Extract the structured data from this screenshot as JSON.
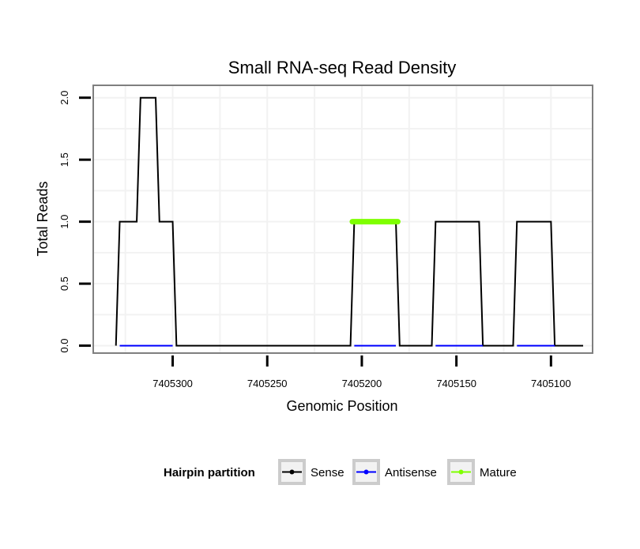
{
  "chart_data": {
    "type": "line",
    "title": "Small RNA-seq Read Density",
    "xlabel": "Genomic Position",
    "ylabel": "Total Reads",
    "xlim": [
      7405342,
      7405078
    ],
    "ylim": [
      -0.06,
      2.1
    ],
    "x_reversed": true,
    "x_ticks": [
      {
        "value": 7405300,
        "label": "7405300"
      },
      {
        "value": 7405250,
        "label": "7405250"
      },
      {
        "value": 7405200,
        "label": "7405200"
      },
      {
        "value": 7405150,
        "label": "7405150"
      },
      {
        "value": 7405100,
        "label": "7405100"
      }
    ],
    "y_ticks": [
      {
        "value": 0,
        "label": "0.0"
      },
      {
        "value": 0.5,
        "label": "0.5"
      },
      {
        "value": 1,
        "label": "1.0"
      },
      {
        "value": 1.5,
        "label": "1.5"
      },
      {
        "value": 2,
        "label": "2.0"
      }
    ],
    "grid": true,
    "legend": {
      "title": "Hairpin partition",
      "position": "bottom"
    },
    "series": [
      {
        "name": "Sense",
        "color": "#000000",
        "x": [
          7405330,
          7405328,
          7405319,
          7405317,
          7405309,
          7405307,
          7405300,
          7405298,
          7405206,
          7405204,
          7405182,
          7405180,
          7405163,
          7405161,
          7405138,
          7405136,
          7405120,
          7405118,
          7405100,
          7405098,
          7405083
        ],
        "y": [
          0,
          1,
          1,
          2,
          2,
          1,
          1,
          0,
          0,
          1,
          1,
          0,
          0,
          1,
          1,
          0,
          0,
          1,
          1,
          0,
          0
        ]
      },
      {
        "name": "Antisense",
        "color": "#0000ff",
        "x": [
          7405328,
          7405300,
          7405204,
          7405182,
          7405161,
          7405136,
          7405118,
          7405098
        ],
        "y": [
          0,
          0,
          0,
          0,
          0,
          0,
          0,
          0
        ],
        "segments": [
          [
            7405328,
            7405300
          ],
          [
            7405204,
            7405182
          ],
          [
            7405161,
            7405136
          ],
          [
            7405118,
            7405098
          ]
        ]
      },
      {
        "name": "Mature",
        "color": "#7fff00",
        "x": [
          7405205,
          7405181
        ],
        "y": [
          1,
          1
        ]
      }
    ]
  }
}
